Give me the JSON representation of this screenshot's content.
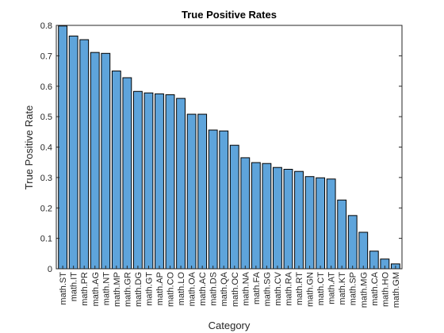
{
  "chart_data": {
    "type": "bar",
    "title": "True Positive Rates",
    "xlabel": "Category",
    "ylabel": "True Positive Rate",
    "ylim": [
      0,
      0.8
    ],
    "yticks": [
      0,
      0.1,
      0.2,
      0.3,
      0.4,
      0.5,
      0.6,
      0.7,
      0.8
    ],
    "grid": false,
    "bar_color": "#5ea4db",
    "categories": [
      "math.ST",
      "math.IT",
      "math.PR",
      "math.AG",
      "math.NT",
      "math.MP",
      "math.GR",
      "math.DG",
      "math.GT",
      "math.AP",
      "math.CO",
      "math.LO",
      "math.OA",
      "math.AC",
      "math.DS",
      "math.QA",
      "math.OC",
      "math.NA",
      "math.FA",
      "math.SG",
      "math.CV",
      "math.RA",
      "math.RT",
      "math.GN",
      "math.CT",
      "math.AT",
      "math.KT",
      "math.SP",
      "math.MG",
      "math.CA",
      "math.HO",
      "math.GM"
    ],
    "values": [
      0.798,
      0.765,
      0.753,
      0.711,
      0.708,
      0.65,
      0.628,
      0.583,
      0.578,
      0.575,
      0.572,
      0.56,
      0.508,
      0.508,
      0.456,
      0.453,
      0.406,
      0.365,
      0.349,
      0.346,
      0.333,
      0.327,
      0.32,
      0.303,
      0.299,
      0.295,
      0.226,
      0.175,
      0.12,
      0.058,
      0.032,
      0.016
    ]
  }
}
